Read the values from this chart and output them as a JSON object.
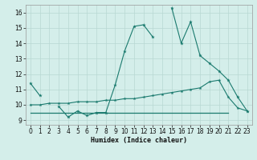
{
  "x": [
    0,
    1,
    2,
    3,
    4,
    5,
    6,
    7,
    8,
    9,
    10,
    11,
    12,
    13,
    14,
    15,
    16,
    17,
    18,
    19,
    20,
    21,
    22,
    23
  ],
  "line1": [
    11.4,
    10.6,
    null,
    9.9,
    9.2,
    9.6,
    9.3,
    9.5,
    9.5,
    11.3,
    13.5,
    15.1,
    15.2,
    14.4,
    null,
    16.3,
    14.0,
    15.4,
    13.2,
    12.7,
    12.2,
    11.6,
    10.5,
    9.6
  ],
  "line2": [
    10.0,
    10.0,
    10.1,
    10.1,
    10.1,
    10.2,
    10.2,
    10.2,
    10.3,
    10.3,
    10.4,
    10.4,
    10.5,
    10.6,
    10.7,
    10.8,
    10.9,
    11.0,
    11.1,
    11.5,
    11.6,
    10.5,
    9.8,
    9.6
  ],
  "line3": [
    9.5,
    9.5,
    9.5,
    9.5,
    9.5,
    9.5,
    9.5,
    9.5,
    9.5,
    9.5,
    9.5,
    9.5,
    9.5,
    9.5,
    9.5,
    9.5,
    9.5,
    9.5,
    9.5,
    9.5,
    9.5,
    9.5,
    null,
    null
  ],
  "line_color": "#1a7a6e",
  "bg_color": "#d4eeea",
  "grid_color": "#b8d8d2",
  "xlabel": "Humidex (Indice chaleur)",
  "ylim": [
    8.7,
    16.5
  ],
  "xlim": [
    -0.5,
    23.5
  ],
  "yticks": [
    9,
    10,
    11,
    12,
    13,
    14,
    15,
    16
  ],
  "xticks": [
    0,
    1,
    2,
    3,
    4,
    5,
    6,
    7,
    8,
    9,
    10,
    11,
    12,
    13,
    14,
    15,
    16,
    17,
    18,
    19,
    20,
    21,
    22,
    23
  ],
  "figsize": [
    3.2,
    2.0
  ],
  "dpi": 100
}
